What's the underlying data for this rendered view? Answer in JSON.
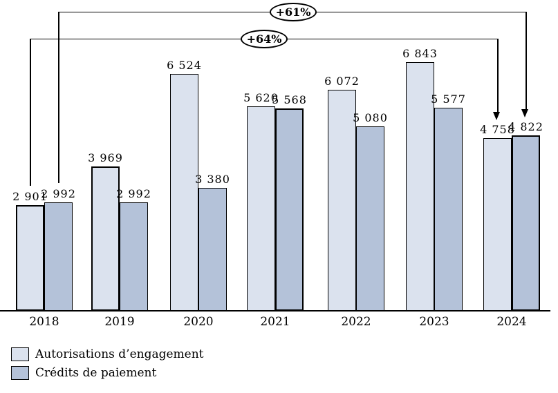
{
  "chart_data": {
    "type": "bar",
    "categories": [
      "2018",
      "2019",
      "2020",
      "2021",
      "2022",
      "2023",
      "2024"
    ],
    "series": [
      {
        "key": "ae",
        "name": "Autorisations d’engagement",
        "color": "#dbe2ee",
        "values": [
          2901,
          3969,
          6524,
          5620,
          6072,
          6843,
          4758
        ],
        "labels": [
          "2 901",
          "3 969",
          "6 524",
          "5 620",
          "6 072",
          "6 843",
          "4 758"
        ],
        "bold_outline": [
          true,
          true,
          false,
          false,
          false,
          false,
          false
        ]
      },
      {
        "key": "cp",
        "name": "Crédits de paiement",
        "color": "#b4c2d9",
        "values": [
          2992,
          2992,
          3380,
          5568,
          5080,
          5577,
          4822
        ],
        "labels": [
          "2 992",
          "2 992",
          "3 380",
          "5 568",
          "5 080",
          "5 577",
          "4 822"
        ],
        "bold_outline": [
          false,
          false,
          false,
          true,
          false,
          false,
          true
        ]
      }
    ],
    "annotations": [
      {
        "label": "+61%",
        "series": "Crédits de paiement",
        "from_year": "2018",
        "to_year": "2024"
      },
      {
        "label": "+64%",
        "series": "Autorisations d’engagement",
        "from_year": "2018",
        "to_year": "2024"
      }
    ],
    "title": "",
    "xlabel": "",
    "ylabel": "",
    "ylim": [
      0,
      8550
    ],
    "grid": false,
    "legend_position": "bottom-left",
    "value_label_format": "thousands separated by space"
  },
  "legend": {
    "items": [
      {
        "label": "Autorisations d’engagement"
      },
      {
        "label": "Crédits de paiement"
      }
    ]
  },
  "colors": {
    "bar_light": "#dbe2ee",
    "bar_dark": "#b4c2d9",
    "outline": "#000000",
    "background": "#ffffff"
  }
}
